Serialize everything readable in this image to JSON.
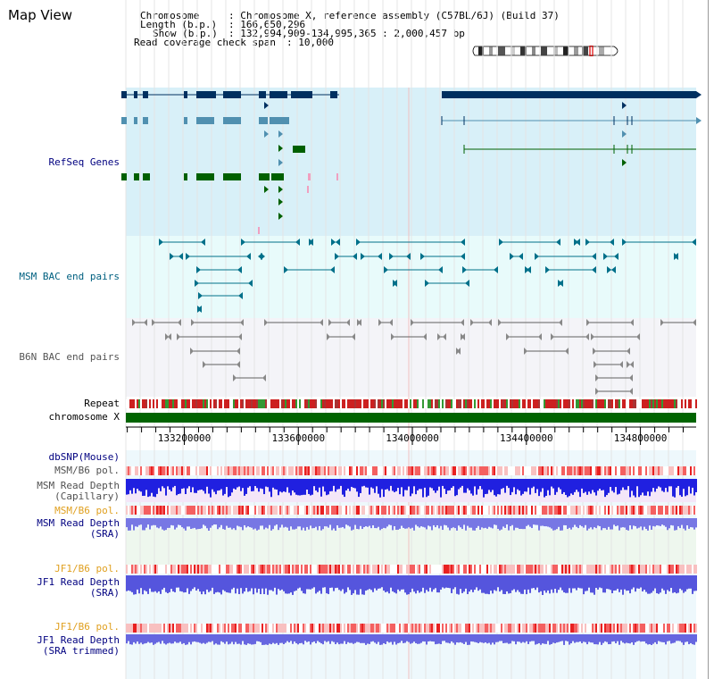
{
  "page": {
    "title": "Map View"
  },
  "info": {
    "chromosome_key": "Chromosome",
    "chromosome_value": ": Chromosome X, reference assembly (C57BL/6J) (Build 37)",
    "length_key": "Length (b.p.)",
    "length_value": ": 166,650,296",
    "show_key": "Show (b.p.)",
    "show_value": ": 132,994,909-134,995,365 : 2,000,457 bp",
    "coverage_key": "Read coverage check span",
    "coverage_value": ": 10,000"
  },
  "tracks": {
    "refseq": {
      "label": "RefSeq Genes",
      "color": "#000080"
    },
    "msm_bac": {
      "label": "MSM BAC end pairs",
      "color": "#006080"
    },
    "b6n_bac": {
      "label": "B6N BAC end pairs",
      "color": "#555555"
    },
    "repeat": {
      "label": "Repeat",
      "color": "#000000"
    },
    "chromosome": {
      "label": "chromosome X",
      "color": "#000000"
    },
    "dbsnp": {
      "label": "dbSNP(Mouse)",
      "color": "#000080"
    },
    "msm_b6_pol_1": {
      "label": "MSM/B6 pol.",
      "color": "#505050"
    },
    "msm_read_depth_cap": {
      "label": "MSM Read Depth\n(Capillary)",
      "color": "#505050"
    },
    "msm_b6_pol_2": {
      "label": "MSM/B6 pol.",
      "color": "#e0a020"
    },
    "msm_read_depth_sra": {
      "label": "MSM Read Depth\n(SRA)",
      "color": "#000080"
    },
    "jf1_b6_pol_1": {
      "label": "JF1/B6 pol.",
      "color": "#e0a020"
    },
    "jf1_read_depth_sra": {
      "label": "JF1 Read Depth\n(SRA)",
      "color": "#000080"
    },
    "jf1_b6_pol_2": {
      "label": "JF1/B6 pol.",
      "color": "#e0a020"
    },
    "jf1_read_depth_trim": {
      "label": "JF1 Read Depth\n(SRA trimmed)",
      "color": "#000080"
    }
  },
  "axis": {
    "ticks": [
      "133200000",
      "133600000",
      "134000000",
      "134400000",
      "134800000"
    ],
    "tick_values": [
      133200000,
      133600000,
      134000000,
      134400000,
      134800000
    ],
    "start": 132994909,
    "end": 134995365
  },
  "colors": {
    "refseq_bg": "#d8f0f8",
    "bac_bg": "#e8fbfb",
    "b6n_bg": "#f4f4f8",
    "gene_dark": "#003060",
    "gene_light": "#5090b0",
    "gene_green": "#006000",
    "bac_teal": "#00708a",
    "bac_grey": "#606060",
    "chromosome_green": "#006400",
    "repeat_red": "#cc2020",
    "depth_blue": "#2a2ad8",
    "depth_sra": "#7070e0",
    "pol_pink": "#f08080",
    "pol_jf1": "#f0a0a0"
  }
}
